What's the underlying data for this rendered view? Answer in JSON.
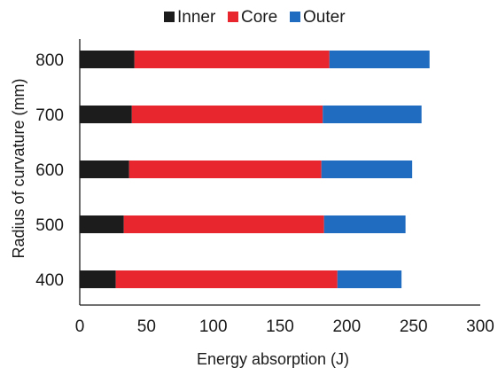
{
  "chart_data": {
    "type": "bar",
    "orientation": "horizontal",
    "stacked": true,
    "title": "",
    "xlabel": "Energy absorption (J)",
    "ylabel": "Radius of curvature (mm)",
    "categories": [
      "400",
      "500",
      "600",
      "700",
      "800"
    ],
    "series": [
      {
        "name": "Inner",
        "color": "#1c1c1c",
        "values": [
          27,
          33,
          37,
          39,
          41
        ]
      },
      {
        "name": "Core",
        "color": "#e8262d",
        "values": [
          166,
          150,
          144,
          143,
          146
        ]
      },
      {
        "name": "Outer",
        "color": "#1f6cc0",
        "values": [
          48,
          61,
          68,
          74,
          75
        ]
      }
    ],
    "xlim": [
      0,
      300
    ],
    "xticks": [
      "0",
      "50",
      "100",
      "150",
      "200",
      "250",
      "300"
    ],
    "grid": false,
    "legend_position": "top"
  }
}
